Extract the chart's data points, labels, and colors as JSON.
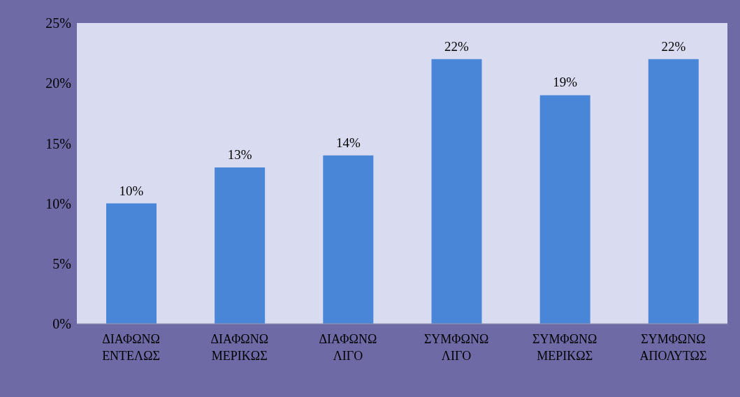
{
  "chart_data": {
    "type": "bar",
    "categories": [
      "ΔΙΑΦΩΝΩ\nΕΝΤΕΛΩΣ",
      "ΔΙΑΦΩΝΩ\nΜΕΡΙΚΩΣ",
      "ΔΙΑΦΩΝΩ\nΛΙΓΟ",
      "ΣΥΜΦΩΝΩ\nΛΙΓΟ",
      "ΣΥΜΦΩΝΩ\nΜΕΡΙΚΩΣ",
      "ΣΥΜΦΩΝΩ\nΑΠΟΛΥΤΩΣ"
    ],
    "values": [
      10,
      13,
      14,
      22,
      19,
      22
    ],
    "value_labels": [
      "10%",
      "13%",
      "14%",
      "22%",
      "19%",
      "22%"
    ],
    "color": "#4a86d8",
    "ylim": [
      0,
      25
    ],
    "yticks": [
      {
        "value": 0,
        "label": "0%"
      },
      {
        "value": 5,
        "label": "5%"
      },
      {
        "value": 10,
        "label": "10%"
      },
      {
        "value": 15,
        "label": "15%"
      },
      {
        "value": 20,
        "label": "20%"
      },
      {
        "value": 25,
        "label": "25%"
      }
    ]
  }
}
